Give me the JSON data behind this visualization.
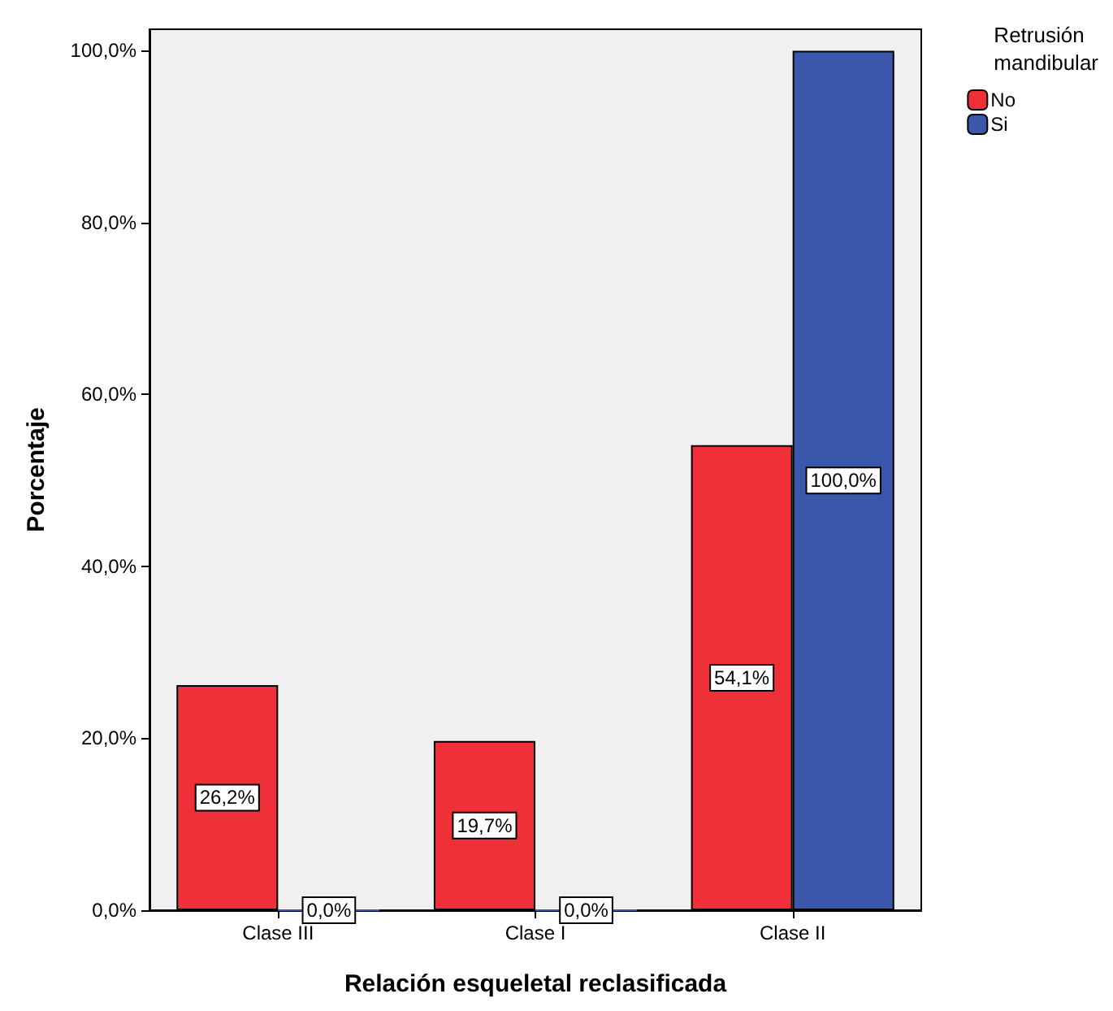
{
  "chart_data": {
    "type": "bar",
    "xlabel": "Relación esqueletal reclasificada",
    "ylabel": "Porcentaje",
    "legend_title": "Retrusión\nmandibular",
    "legend": "top right",
    "categories": [
      "Clase III",
      "Clase I",
      "Clase II"
    ],
    "series": [
      {
        "name": "No",
        "color": "#ef3038",
        "values": [
          26.2,
          19.7,
          54.1
        ],
        "value_labels": [
          "26,2%",
          "19,7%",
          "54,1%"
        ]
      },
      {
        "name": "Si",
        "color": "#3a57ab",
        "values": [
          0.0,
          0.0,
          100.0
        ],
        "value_labels": [
          "0,0%",
          "0,0%",
          "100,0%"
        ]
      }
    ],
    "ylim": [
      0,
      102.5
    ],
    "yticks": [
      {
        "value": 0,
        "label": "0,0%"
      },
      {
        "value": 20,
        "label": "20,0%"
      },
      {
        "value": 40,
        "label": "40,0%"
      },
      {
        "value": 60,
        "label": "60,0%"
      },
      {
        "value": 80,
        "label": "80,0%"
      },
      {
        "value": 100,
        "label": "100,0%"
      }
    ],
    "grid": false
  }
}
